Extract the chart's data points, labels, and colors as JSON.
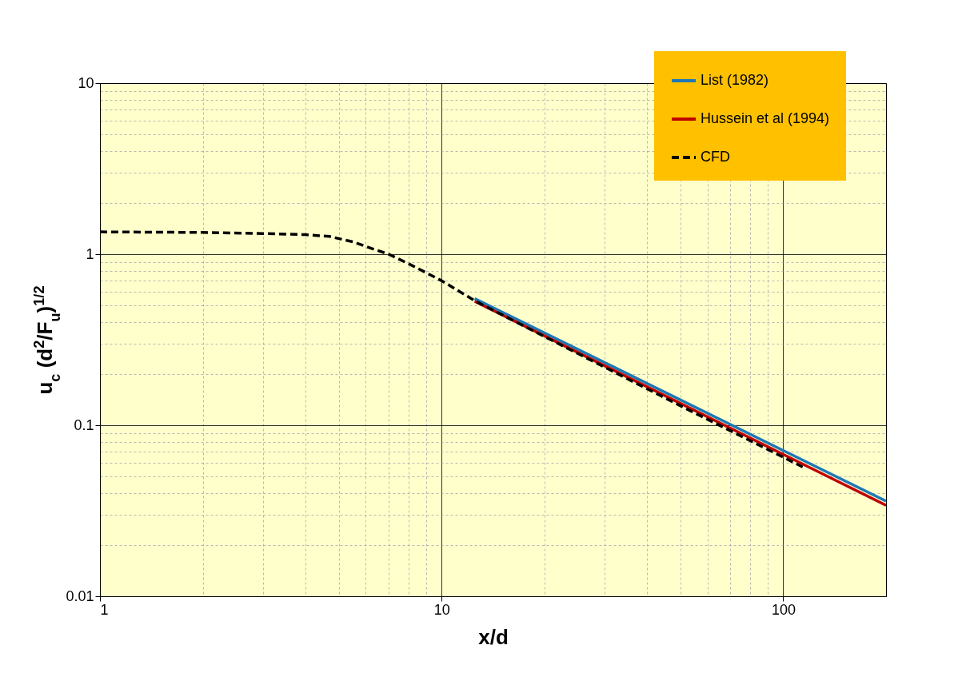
{
  "chart_data": {
    "type": "line",
    "xlabel": "x/d",
    "ylabel": "u$_{c}$ (d$^{2}$/F$_{u}$)$^{1/2}$",
    "log": "xy",
    "grid": true,
    "legend": "top right",
    "xlim": [
      1,
      200
    ],
    "ylim": [
      0.01,
      10
    ],
    "xticks": [
      1,
      {
        "value": 2,
        "label": null
      },
      {
        "value": 3,
        "label": null
      },
      {
        "value": 4,
        "label": null
      },
      {
        "value": 5,
        "label": null
      },
      {
        "value": 6,
        "label": null
      },
      {
        "value": 7,
        "label": null
      },
      {
        "value": 8,
        "label": null
      },
      {
        "value": 9,
        "label": null
      },
      10,
      {
        "value": 20,
        "label": null
      },
      {
        "value": 30,
        "label": null
      },
      {
        "value": 40,
        "label": null
      },
      {
        "value": 50,
        "label": null
      },
      {
        "value": 60,
        "label": null
      },
      {
        "value": 70,
        "label": null
      },
      {
        "value": 80,
        "label": null
      },
      {
        "value": 90,
        "label": null
      },
      100
    ],
    "yticks": [
      0.01,
      {
        "value": 0.02,
        "label": null
      },
      {
        "value": 0.03,
        "label": null
      },
      {
        "value": 0.04,
        "label": null
      },
      {
        "value": 0.05,
        "label": null
      },
      {
        "value": 0.06,
        "label": null
      },
      {
        "value": 0.07,
        "label": null
      },
      {
        "value": 0.08,
        "label": null
      },
      {
        "value": 0.09,
        "label": null
      },
      0.1,
      {
        "value": 0.2,
        "label": null
      },
      {
        "value": 0.3,
        "label": null
      },
      {
        "value": 0.4,
        "label": null
      },
      {
        "value": 0.5,
        "label": null
      },
      {
        "value": 0.6,
        "label": null
      },
      {
        "value": 0.7,
        "label": null
      },
      {
        "value": 0.8,
        "label": null
      },
      {
        "value": 0.9,
        "label": null
      },
      1,
      {
        "value": 2,
        "label": null
      },
      {
        "value": 3,
        "label": null
      },
      {
        "value": 4,
        "label": null
      },
      {
        "value": 5,
        "label": null
      },
      {
        "value": 6,
        "label": null
      },
      {
        "value": 7,
        "label": null
      },
      {
        "value": 8,
        "label": null
      },
      {
        "value": 9,
        "label": null
      },
      10
    ],
    "series": [
      {
        "name": "List (1982)",
        "color": "#1f78b4",
        "line_style": "solid",
        "x": [
          12.5,
          200
        ],
        "values": [
          0.55,
          0.036
        ]
      },
      {
        "name": "Hussein et al (1994)",
        "color": "#c00000",
        "line_style": "solid",
        "x": [
          12.5,
          200
        ],
        "values": [
          0.53,
          0.034
        ]
      },
      {
        "name": "CFD",
        "color": "#000000",
        "line_style": "dashed",
        "x": [
          1,
          2,
          3,
          4,
          4.7,
          5.5,
          6.5,
          7,
          8,
          10,
          12.6,
          20,
          50,
          100,
          114
        ],
        "values": [
          1.35,
          1.34,
          1.32,
          1.3,
          1.27,
          1.18,
          1.05,
          1.0,
          0.88,
          0.7,
          0.53,
          0.33,
          0.13,
          0.065,
          0.057
        ]
      }
    ]
  }
}
